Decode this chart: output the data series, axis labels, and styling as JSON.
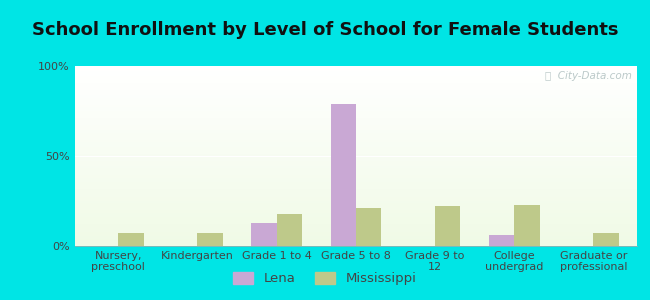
{
  "title": "School Enrollment by Level of School for Female Students",
  "categories": [
    "Nursery,\npreschool",
    "Kindergarten",
    "Grade 1 to 4",
    "Grade 5 to 8",
    "Grade 9 to\n12",
    "College\nundergrad",
    "Graduate or\nprofessional"
  ],
  "lena_values": [
    0,
    0,
    13,
    79,
    0,
    6,
    0
  ],
  "mississippi_values": [
    7,
    7,
    18,
    21,
    22,
    23,
    7
  ],
  "lena_color": "#c9a8d4",
  "mississippi_color": "#bec98a",
  "bg_outer": "#00e5e5",
  "bar_width": 0.32,
  "ylim": [
    0,
    100
  ],
  "yticks": [
    0,
    50,
    100
  ],
  "ytick_labels": [
    "0%",
    "50%",
    "100%"
  ],
  "legend_labels": [
    "Lena",
    "Mississippi"
  ],
  "title_fontsize": 13,
  "tick_fontsize": 8,
  "legend_fontsize": 9.5,
  "watermark": "ⓘ  City-Data.com"
}
